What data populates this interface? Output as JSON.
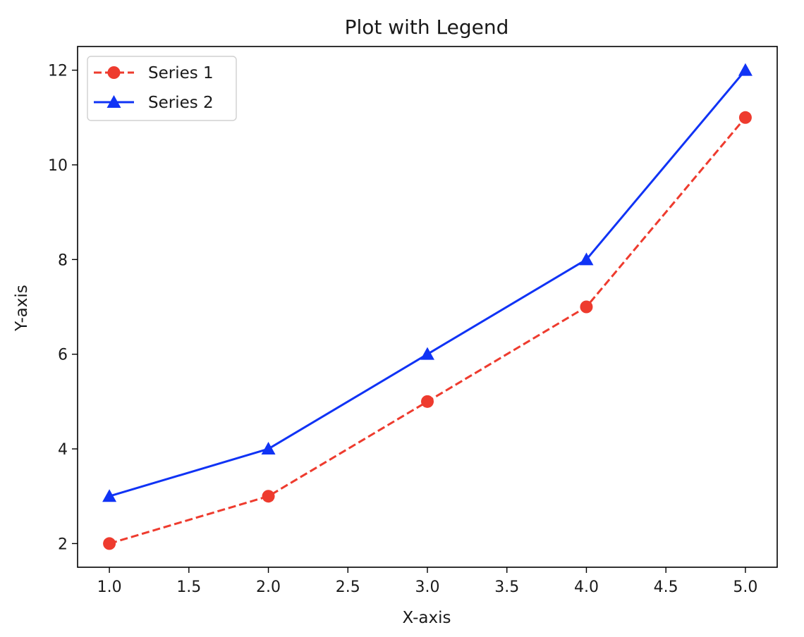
{
  "chart_data": {
    "type": "line",
    "title": "Plot with Legend",
    "xlabel": "X-axis",
    "ylabel": "Y-axis",
    "x": [
      1,
      2,
      3,
      4,
      5
    ],
    "xlim": [
      0.8,
      5.2
    ],
    "ylim": [
      1.5,
      12.5
    ],
    "xticks": [
      1.0,
      1.5,
      2.0,
      2.5,
      3.0,
      3.5,
      4.0,
      4.5,
      5.0
    ],
    "xtick_labels": [
      "1.0",
      "1.5",
      "2.0",
      "2.5",
      "3.0",
      "3.5",
      "4.0",
      "4.5",
      "5.0"
    ],
    "yticks": [
      2,
      4,
      6,
      8,
      10,
      12
    ],
    "ytick_labels": [
      "2",
      "4",
      "6",
      "8",
      "10",
      "12"
    ],
    "grid": false,
    "legend_position": "top-left",
    "series": [
      {
        "name": "Series 1",
        "values": [
          2,
          3,
          5,
          7,
          11
        ],
        "color": "#ee3b2e",
        "line_style": "dashed",
        "marker": "circle"
      },
      {
        "name": "Series 2",
        "values": [
          3,
          4,
          6,
          8,
          12
        ],
        "color": "#1033f5",
        "line_style": "solid",
        "marker": "triangle"
      }
    ]
  }
}
